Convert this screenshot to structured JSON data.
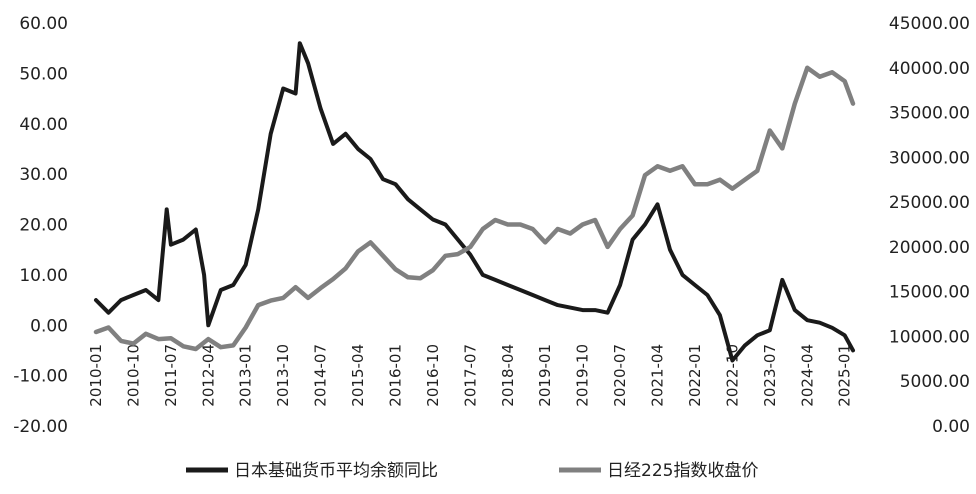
{
  "chart_data": {
    "type": "line",
    "title": "",
    "x_ticks": [
      "2010-01",
      "2010-10",
      "2011-07",
      "2012-04",
      "2013-01",
      "2013-10",
      "2014-07",
      "2015-04",
      "2016-01",
      "2016-10",
      "2017-07",
      "2018-04",
      "2019-01",
      "2019-10",
      "2020-07",
      "2021-04",
      "2022-01",
      "2022-10",
      "2023-07",
      "2024-04",
      "2025-01"
    ],
    "y_left": {
      "ticks": [
        "-20.00",
        "-10.00",
        "0.00",
        "10.00",
        "20.00",
        "30.00",
        "40.00",
        "50.00",
        "60.00"
      ],
      "range": [
        -20,
        60
      ]
    },
    "y_right": {
      "ticks": [
        "0.00",
        "5000.00",
        "10000.00",
        "15000.00",
        "20000.00",
        "25000.00",
        "30000.00",
        "35000.00",
        "40000.00",
        "45000.00"
      ],
      "range": [
        0,
        45000
      ]
    },
    "legend_position": "bottom",
    "series": [
      {
        "name": "日本基础货币平均余额同比",
        "axis": "left",
        "color": "#1a1a1a",
        "x": [
          "2010-01",
          "2010-04",
          "2010-07",
          "2010-10",
          "2011-01",
          "2011-04",
          "2011-06",
          "2011-07",
          "2011-10",
          "2012-01",
          "2012-03",
          "2012-04",
          "2012-07",
          "2012-10",
          "2013-01",
          "2013-04",
          "2013-07",
          "2013-10",
          "2014-01",
          "2014-02",
          "2014-04",
          "2014-07",
          "2014-10",
          "2015-01",
          "2015-04",
          "2015-07",
          "2015-10",
          "2016-01",
          "2016-04",
          "2016-07",
          "2016-10",
          "2017-01",
          "2017-04",
          "2017-07",
          "2017-10",
          "2018-01",
          "2018-04",
          "2018-07",
          "2018-10",
          "2019-01",
          "2019-04",
          "2019-07",
          "2019-10",
          "2020-01",
          "2020-04",
          "2020-07",
          "2020-10",
          "2021-01",
          "2021-04",
          "2021-07",
          "2021-10",
          "2022-01",
          "2022-04",
          "2022-07",
          "2022-10",
          "2023-01",
          "2023-04",
          "2023-07",
          "2023-10",
          "2024-01",
          "2024-04",
          "2024-07",
          "2024-10",
          "2025-01",
          "2025-03"
        ],
        "y": [
          5,
          2.5,
          5,
          6,
          7,
          5,
          23,
          16,
          17,
          19,
          10,
          0,
          7,
          8,
          12,
          23,
          38,
          47,
          46,
          56,
          52,
          43,
          36,
          38,
          35,
          33,
          29,
          28,
          25,
          23,
          21,
          20,
          17,
          14,
          10,
          9,
          8,
          7,
          6,
          5,
          4,
          3.5,
          3,
          3,
          2.5,
          8,
          17,
          20,
          24,
          15,
          10,
          8,
          6,
          2,
          -7,
          -4,
          -2,
          -1,
          9,
          3,
          1,
          0.5,
          -0.5,
          -2,
          -5
        ]
      },
      {
        "name": "日经225指数收盘价",
        "axis": "right",
        "color": "#808080",
        "x": [
          "2010-01",
          "2010-04",
          "2010-07",
          "2010-10",
          "2011-01",
          "2011-04",
          "2011-07",
          "2011-10",
          "2012-01",
          "2012-04",
          "2012-07",
          "2012-10",
          "2013-01",
          "2013-04",
          "2013-07",
          "2013-10",
          "2014-01",
          "2014-04",
          "2014-07",
          "2014-10",
          "2015-01",
          "2015-04",
          "2015-07",
          "2015-10",
          "2016-01",
          "2016-04",
          "2016-07",
          "2016-10",
          "2017-01",
          "2017-04",
          "2017-07",
          "2017-10",
          "2018-01",
          "2018-04",
          "2018-07",
          "2018-10",
          "2019-01",
          "2019-04",
          "2019-07",
          "2019-10",
          "2020-01",
          "2020-04",
          "2020-07",
          "2020-10",
          "2021-01",
          "2021-04",
          "2021-07",
          "2021-10",
          "2022-01",
          "2022-04",
          "2022-07",
          "2022-10",
          "2023-01",
          "2023-04",
          "2023-07",
          "2023-10",
          "2024-01",
          "2024-04",
          "2024-07",
          "2024-10",
          "2025-01",
          "2025-03"
        ],
        "y": [
          10500,
          11000,
          9500,
          9200,
          10300,
          9700,
          9800,
          8900,
          8600,
          9700,
          8800,
          9000,
          11000,
          13500,
          14000,
          14300,
          15500,
          14300,
          15400,
          16400,
          17600,
          19500,
          20500,
          19000,
          17500,
          16600,
          16500,
          17400,
          19000,
          19200,
          20000,
          22000,
          23000,
          22500,
          22500,
          22000,
          20500,
          22000,
          21500,
          22500,
          23000,
          20000,
          22000,
          23500,
          28000,
          29000,
          28500,
          29000,
          27000,
          27000,
          27500,
          26500,
          27500,
          28500,
          33000,
          31000,
          36000,
          40000,
          39000,
          39500,
          38500,
          36000
        ]
      }
    ]
  }
}
